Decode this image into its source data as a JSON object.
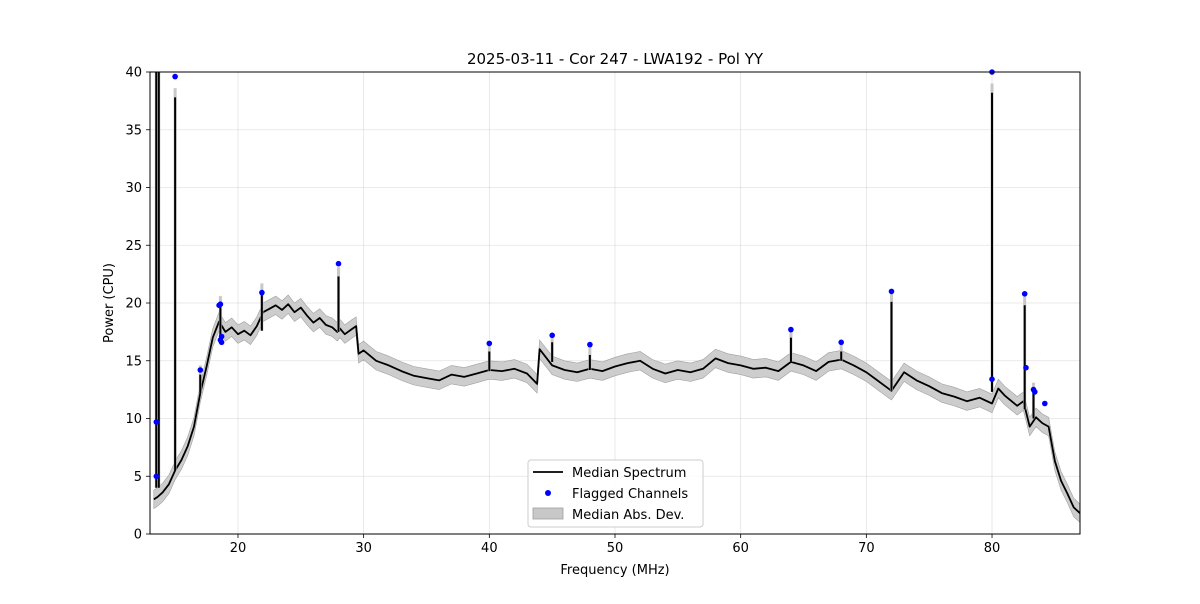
{
  "chart_data": {
    "type": "line",
    "title": "2025-03-11 - Cor 247 - LWA192 - Pol YY",
    "xlabel": "Frequency (MHz)",
    "ylabel": "Power (CPU)",
    "xlim": [
      13.0,
      87.0
    ],
    "ylim": [
      0,
      40
    ],
    "xticks": [
      20,
      30,
      40,
      50,
      60,
      70,
      80
    ],
    "yticks": [
      0,
      5,
      10,
      15,
      20,
      25,
      30,
      35,
      40
    ],
    "grid": true,
    "legend_position": "lower center",
    "colors": {
      "median": "#000000",
      "flagged": "#0000ff",
      "mad_fill": "#c8c8c8",
      "mad_edge": "#a0a0a0"
    },
    "series": [
      {
        "name": "Median Spectrum",
        "kind": "line",
        "x": [
          13.3,
          13.6,
          14.0,
          14.5,
          15.0,
          15.5,
          16.0,
          16.5,
          17.0,
          17.5,
          18.0,
          18.5,
          19.0,
          19.5,
          20.0,
          20.5,
          21.0,
          21.5,
          22.0,
          22.5,
          23.0,
          23.5,
          24.0,
          24.5,
          25.0,
          25.5,
          26.0,
          26.5,
          27.0,
          27.5,
          27.9,
          28.1,
          28.5,
          29.0,
          29.4,
          29.6,
          30.0,
          31.0,
          32.0,
          33.0,
          34.0,
          35.0,
          36.0,
          37.0,
          38.0,
          39.0,
          40.0,
          41.0,
          42.0,
          43.0,
          43.8,
          44.0,
          45.0,
          46.0,
          47.0,
          48.0,
          49.0,
          50.0,
          51.0,
          52.0,
          53.0,
          54.0,
          55.0,
          56.0,
          57.0,
          58.0,
          59.0,
          60.0,
          61.0,
          62.0,
          63.0,
          64.0,
          65.0,
          66.0,
          67.0,
          68.0,
          69.0,
          70.0,
          71.0,
          72.0,
          73.0,
          74.0,
          75.0,
          76.0,
          77.0,
          78.0,
          79.0,
          80.0,
          80.5,
          81.0,
          82.0,
          82.5,
          83.0,
          83.5,
          84.0,
          84.5,
          85.0,
          85.5,
          86.0,
          86.5,
          87.0
        ],
        "y": [
          3.0,
          3.2,
          3.6,
          4.3,
          5.5,
          6.4,
          7.6,
          9.3,
          12.2,
          14.5,
          17.0,
          18.4,
          17.5,
          17.9,
          17.3,
          17.6,
          17.2,
          18.0,
          19.2,
          19.5,
          19.8,
          19.4,
          19.9,
          19.2,
          19.6,
          18.9,
          18.3,
          18.7,
          18.1,
          17.9,
          17.5,
          17.8,
          17.3,
          17.7,
          18.0,
          15.6,
          15.9,
          15.0,
          14.6,
          14.1,
          13.7,
          13.5,
          13.3,
          13.8,
          13.6,
          13.9,
          14.2,
          14.1,
          14.3,
          13.9,
          13.0,
          16.0,
          14.6,
          14.2,
          14.0,
          14.3,
          14.1,
          14.5,
          14.8,
          15.0,
          14.3,
          13.9,
          14.2,
          14.0,
          14.3,
          15.2,
          14.8,
          14.6,
          14.3,
          14.4,
          14.1,
          14.9,
          14.6,
          14.1,
          14.9,
          15.1,
          14.6,
          14.0,
          13.2,
          12.4,
          14.0,
          13.3,
          12.8,
          12.2,
          11.9,
          11.5,
          11.8,
          11.3,
          12.6,
          12.0,
          11.1,
          11.5,
          9.3,
          10.1,
          9.6,
          9.3,
          6.3,
          4.6,
          3.5,
          2.3,
          1.8
        ]
      },
      {
        "name": "Flagged Channels",
        "kind": "points",
        "x": [
          13.5,
          13.5,
          15.0,
          17.0,
          18.5,
          18.6,
          18.6,
          18.7,
          18.7,
          21.9,
          28.0,
          40.0,
          45.0,
          48.0,
          64.0,
          68.0,
          72.0,
          80.0,
          80.0,
          82.6,
          82.7,
          83.3,
          83.4,
          84.2
        ],
        "y": [
          9.7,
          5.0,
          39.6,
          14.2,
          19.8,
          19.9,
          16.8,
          17.1,
          16.6,
          20.9,
          23.4,
          16.5,
          17.2,
          16.4,
          17.7,
          16.6,
          21.0,
          40.0,
          13.4,
          20.8,
          14.4,
          12.5,
          12.3,
          11.3
        ]
      },
      {
        "name": "Median Abs. Dev.",
        "kind": "band",
        "half_width": 0.8
      }
    ],
    "spikes": [
      {
        "x": 13.5,
        "base": 4.0,
        "peak": 40.0
      },
      {
        "x": 13.7,
        "base": 4.0,
        "peak": 40.0
      },
      {
        "x": 15.0,
        "base": 5.5,
        "peak": 37.8
      },
      {
        "x": 17.0,
        "base": 12.2,
        "peak": 13.8
      },
      {
        "x": 18.6,
        "base": 17.2,
        "peak": 19.8
      },
      {
        "x": 21.9,
        "base": 17.6,
        "peak": 20.9
      },
      {
        "x": 28.0,
        "base": 17.5,
        "peak": 22.3
      },
      {
        "x": 40.0,
        "base": 14.1,
        "peak": 15.8
      },
      {
        "x": 45.0,
        "base": 14.9,
        "peak": 16.6
      },
      {
        "x": 48.0,
        "base": 14.2,
        "peak": 15.5
      },
      {
        "x": 64.0,
        "base": 14.9,
        "peak": 17.0
      },
      {
        "x": 68.0,
        "base": 15.0,
        "peak": 15.8
      },
      {
        "x": 72.0,
        "base": 12.4,
        "peak": 20.1
      },
      {
        "x": 80.0,
        "base": 12.3,
        "peak": 38.2
      },
      {
        "x": 82.6,
        "base": 10.8,
        "peak": 19.8
      },
      {
        "x": 83.3,
        "base": 10.0,
        "peak": 12.3
      }
    ]
  }
}
